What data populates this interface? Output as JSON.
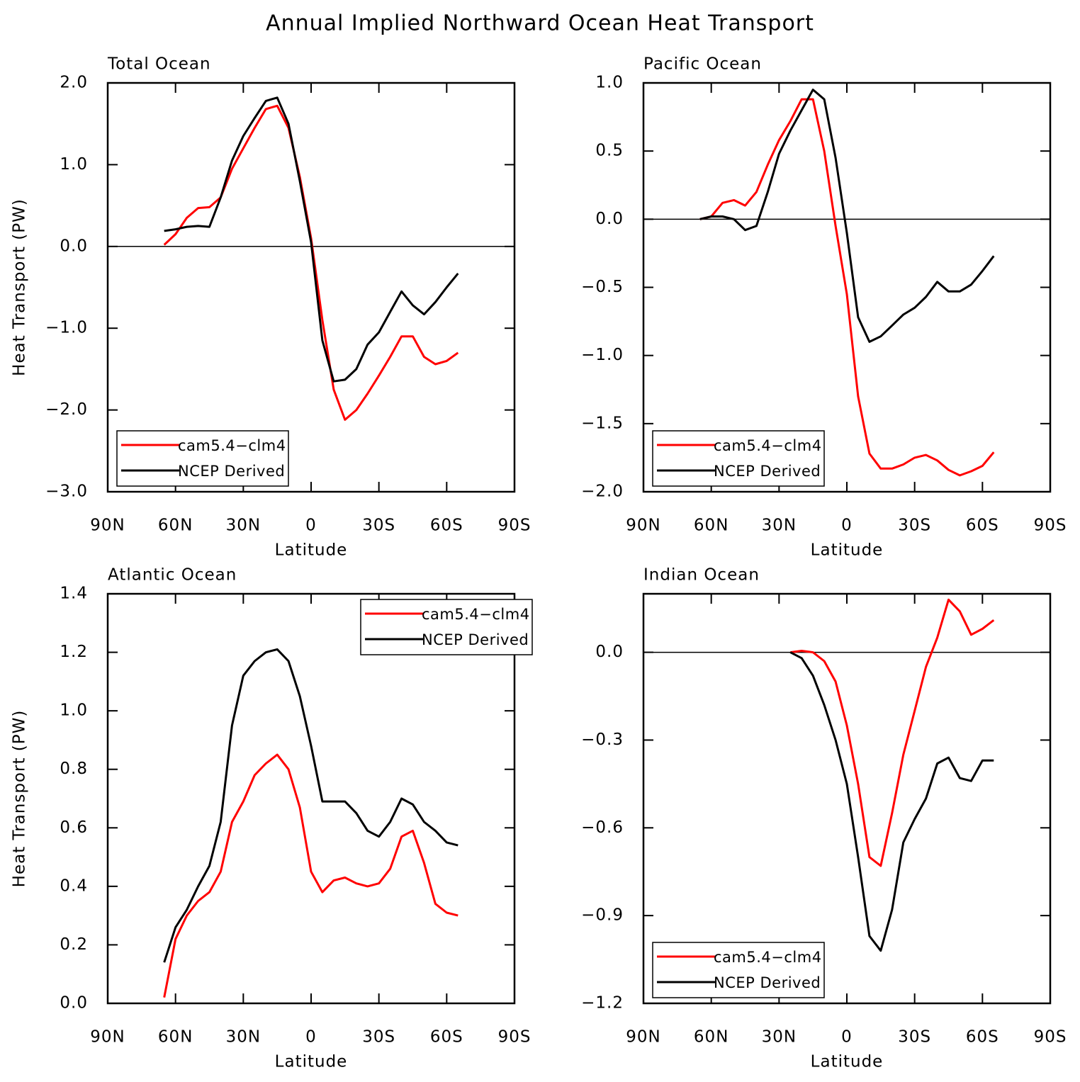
{
  "title": "Annual Implied Northward Ocean Heat Transport",
  "chart_data": [
    {
      "type": "line",
      "title": "Total Ocean",
      "xlabel": "Latitude",
      "ylabel": "Heat Transport (PW)",
      "x": [
        65,
        60,
        55,
        50,
        45,
        40,
        35,
        30,
        25,
        20,
        15,
        10,
        5,
        0,
        -5,
        -10,
        -15,
        -20,
        -25,
        -30,
        -35,
        -40,
        -45,
        -50,
        -55,
        -60,
        -65
      ],
      "xlim": [
        90,
        -90
      ],
      "xticks": [
        {
          "value": 90,
          "label": "90N"
        },
        {
          "value": 60,
          "label": "60N"
        },
        {
          "value": 30,
          "label": "30N"
        },
        0,
        {
          "value": -30,
          "label": "30S"
        },
        {
          "value": -60,
          "label": "60S"
        },
        {
          "value": -90,
          "label": "90S"
        }
      ],
      "ylim": [
        -3,
        2
      ],
      "yticks": [
        {
          "value": -3,
          "label": "−3.0"
        },
        {
          "value": -2,
          "label": "−2.0"
        },
        {
          "value": -1,
          "label": "−1.0"
        },
        {
          "value": 0,
          "label": "0.0"
        },
        {
          "value": 1,
          "label": "1.0"
        },
        {
          "value": 2,
          "label": "2.0"
        }
      ],
      "zero_line": true,
      "legend": "lower left",
      "series": [
        {
          "name": "cam5.4−clm4",
          "color": "#ff0000",
          "values": [
            0.02,
            0.15,
            0.35,
            0.47,
            0.48,
            0.6,
            0.95,
            1.2,
            1.45,
            1.68,
            1.72,
            1.45,
            0.85,
            0.1,
            -0.9,
            -1.75,
            -2.12,
            -2.0,
            -1.8,
            -1.58,
            -1.35,
            -1.1,
            -1.1,
            -1.35,
            -1.44,
            -1.4,
            -1.3
          ]
        },
        {
          "name": "NCEP Derived",
          "color": "#000000",
          "values": [
            0.19,
            0.21,
            0.24,
            0.25,
            0.24,
            0.6,
            1.05,
            1.35,
            1.57,
            1.78,
            1.82,
            1.5,
            0.8,
            0.05,
            -1.15,
            -1.65,
            -1.63,
            -1.5,
            -1.2,
            -1.05,
            -0.8,
            -0.55,
            -0.72,
            -0.83,
            -0.68,
            -0.5,
            -0.33
          ]
        }
      ]
    },
    {
      "type": "line",
      "title": "Pacific Ocean",
      "xlabel": "Latitude",
      "x": [
        65,
        60,
        55,
        50,
        45,
        40,
        35,
        30,
        25,
        20,
        15,
        10,
        5,
        0,
        -5,
        -10,
        -15,
        -20,
        -25,
        -30,
        -35,
        -40,
        -45,
        -50,
        -55,
        -60,
        -65
      ],
      "xlim": [
        90,
        -90
      ],
      "xticks": [
        {
          "value": 90,
          "label": "90N"
        },
        {
          "value": 60,
          "label": "60N"
        },
        {
          "value": 30,
          "label": "30N"
        },
        0,
        {
          "value": -30,
          "label": "30S"
        },
        {
          "value": -60,
          "label": "60S"
        },
        {
          "value": -90,
          "label": "90S"
        }
      ],
      "ylim": [
        -2,
        1
      ],
      "yticks": [
        {
          "value": -2,
          "label": "−2.0"
        },
        {
          "value": -1.5,
          "label": "−1.5"
        },
        {
          "value": -1,
          "label": "−1.0"
        },
        {
          "value": -0.5,
          "label": "−0.5"
        },
        {
          "value": 0,
          "label": "0.0"
        },
        0.5,
        {
          "value": 1,
          "label": "1.0"
        }
      ],
      "zero_line": true,
      "legend": "lower left",
      "series": [
        {
          "name": "cam5.4−clm4",
          "color": "#ff0000",
          "values": [
            0.0,
            0.02,
            0.12,
            0.14,
            0.1,
            0.2,
            0.4,
            0.58,
            0.72,
            0.88,
            0.88,
            0.5,
            -0.05,
            -0.55,
            -1.3,
            -1.72,
            -1.83,
            -1.83,
            -1.8,
            -1.75,
            -1.73,
            -1.77,
            -1.84,
            -1.88,
            -1.85,
            -1.81,
            -1.71
          ]
        },
        {
          "name": "NCEP Derived",
          "color": "#000000",
          "values": [
            0.0,
            0.02,
            0.02,
            0.0,
            -0.08,
            -0.05,
            0.2,
            0.48,
            0.65,
            0.8,
            0.95,
            0.88,
            0.45,
            -0.1,
            -0.72,
            -0.9,
            -0.86,
            -0.78,
            -0.7,
            -0.65,
            -0.57,
            -0.46,
            -0.53,
            -0.53,
            -0.48,
            -0.38,
            -0.27
          ]
        }
      ]
    },
    {
      "type": "line",
      "title": "Atlantic Ocean",
      "xlabel": "Latitude",
      "ylabel": "Heat Transport (PW)",
      "x": [
        65,
        60,
        55,
        50,
        45,
        40,
        35,
        30,
        25,
        20,
        15,
        10,
        5,
        0,
        -5,
        -10,
        -15,
        -20,
        -25,
        -30,
        -35,
        -40,
        -45,
        -50,
        -55,
        -60,
        -65
      ],
      "xlim": [
        90,
        -90
      ],
      "xticks": [
        {
          "value": 90,
          "label": "90N"
        },
        {
          "value": 60,
          "label": "60N"
        },
        {
          "value": 30,
          "label": "30N"
        },
        0,
        {
          "value": -30,
          "label": "30S"
        },
        {
          "value": -60,
          "label": "60S"
        },
        {
          "value": -90,
          "label": "90S"
        }
      ],
      "ylim": [
        0,
        1.4
      ],
      "yticks": [
        {
          "value": 0,
          "label": "0.0"
        },
        0.2,
        0.4,
        0.6,
        0.8,
        {
          "value": 1,
          "label": "1.0"
        },
        1.2,
        1.4
      ],
      "zero_line": false,
      "legend": "upper right",
      "series": [
        {
          "name": "cam5.4−clm4",
          "color": "#ff0000",
          "values": [
            0.02,
            0.22,
            0.3,
            0.35,
            0.38,
            0.45,
            0.62,
            0.69,
            0.78,
            0.82,
            0.85,
            0.8,
            0.67,
            0.45,
            0.38,
            0.42,
            0.43,
            0.41,
            0.4,
            0.41,
            0.46,
            0.57,
            0.59,
            0.48,
            0.34,
            0.31,
            0.3
          ]
        },
        {
          "name": "NCEP Derived",
          "color": "#000000",
          "values": [
            0.14,
            0.26,
            0.32,
            0.4,
            0.47,
            0.62,
            0.95,
            1.12,
            1.17,
            1.2,
            1.21,
            1.17,
            1.05,
            0.88,
            0.69,
            0.69,
            0.69,
            0.65,
            0.59,
            0.57,
            0.62,
            0.7,
            0.68,
            0.62,
            0.59,
            0.55,
            0.54
          ]
        }
      ]
    },
    {
      "type": "line",
      "title": "Indian Ocean",
      "xlabel": "Latitude",
      "x": [
        65,
        60,
        55,
        50,
        45,
        40,
        35,
        30,
        25,
        20,
        15,
        10,
        5,
        0,
        -5,
        -10,
        -15,
        -20,
        -25,
        -30,
        -35,
        -40,
        -45,
        -50,
        -55,
        -60,
        -65
      ],
      "xlim": [
        90,
        -90
      ],
      "xticks": [
        {
          "value": 90,
          "label": "90N"
        },
        {
          "value": 60,
          "label": "60N"
        },
        {
          "value": 30,
          "label": "30N"
        },
        0,
        {
          "value": -30,
          "label": "30S"
        },
        {
          "value": -60,
          "label": "60S"
        },
        {
          "value": -90,
          "label": "90S"
        }
      ],
      "ylim": [
        -1.2,
        0.2
      ],
      "yticks": [
        {
          "value": -1.2,
          "label": "−1.2"
        },
        {
          "value": -0.9,
          "label": "−0.9"
        },
        {
          "value": -0.6,
          "label": "−0.6"
        },
        {
          "value": -0.3,
          "label": "−0.3"
        },
        {
          "value": 0,
          "label": "0.0"
        }
      ],
      "zero_line": true,
      "legend": "lower left",
      "series": [
        {
          "name": "cam5.4−clm4",
          "color": "#ff0000",
          "values": [
            null,
            null,
            null,
            null,
            null,
            null,
            null,
            null,
            0.0,
            0.005,
            0.0,
            -0.03,
            -0.1,
            -0.25,
            -0.45,
            -0.7,
            -0.73,
            -0.55,
            -0.35,
            -0.2,
            -0.05,
            0.05,
            0.18,
            0.14,
            0.06,
            0.08,
            0.11
          ]
        },
        {
          "name": "NCEP Derived",
          "color": "#000000",
          "values": [
            null,
            null,
            null,
            null,
            null,
            null,
            null,
            null,
            0.0,
            -0.02,
            -0.08,
            -0.18,
            -0.3,
            -0.45,
            -0.7,
            -0.97,
            -1.02,
            -0.88,
            -0.65,
            -0.57,
            -0.5,
            -0.38,
            -0.36,
            -0.43,
            -0.44,
            -0.37,
            -0.37
          ]
        }
      ]
    }
  ]
}
